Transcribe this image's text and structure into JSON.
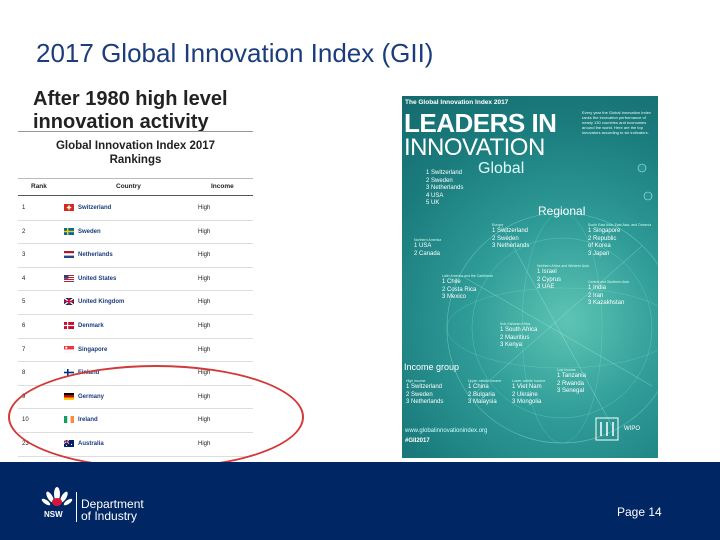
{
  "slide": {
    "title": "2017 Global Innovation Index (GII)",
    "subtitle_line1": "After 1980 high level",
    "subtitle_line2": "innovation activity",
    "page_label": "Page 14"
  },
  "rankings": {
    "heading_line1": "Global Innovation Index 2017",
    "heading_line2": "Rankings",
    "columns": [
      "Rank",
      "Country",
      "Income"
    ],
    "rows": [
      {
        "rank": "1",
        "country": "Switzerland",
        "income": "High",
        "flag": "switzerland-flag"
      },
      {
        "rank": "2",
        "country": "Sweden",
        "income": "High",
        "flag": "sweden-flag"
      },
      {
        "rank": "3",
        "country": "Netherlands",
        "income": "High",
        "flag": "netherlands-flag"
      },
      {
        "rank": "4",
        "country": "United States",
        "income": "High",
        "flag": "us-flag"
      },
      {
        "rank": "5",
        "country": "United Kingdom",
        "income": "High",
        "flag": "uk-flag"
      },
      {
        "rank": "6",
        "country": "Denmark",
        "income": "High",
        "flag": "denmark-flag"
      },
      {
        "rank": "7",
        "country": "Singapore",
        "income": "High",
        "flag": "singapore-flag"
      },
      {
        "rank": "8",
        "country": "Finland",
        "income": "High",
        "flag": "finland-flag"
      },
      {
        "rank": "9",
        "country": "Germany",
        "income": "High",
        "flag": "germany-flag"
      },
      {
        "rank": "10",
        "country": "Ireland",
        "income": "High",
        "flag": "ireland-flag"
      },
      {
        "rank": "23",
        "country": "Australia",
        "income": "High",
        "flag": "australia-flag"
      }
    ]
  },
  "cover": {
    "small_title": "The Global Innovation Index 2017",
    "leaders": "LEADERS IN",
    "innovation": "INNOVATION",
    "global": "Global",
    "blurb": "Every year the Global Innovation Index ranks the innovation performance of nearly 130 countries and economies around the world. Here are the top innovators according to six indicators.",
    "global_list": [
      "1 Switzerland",
      "2 Sweden",
      "3 Netherlands",
      "4 USA",
      "5 UK"
    ],
    "regional": "Regional",
    "europe_label": "Europe",
    "europe_list": [
      "1 Switzerland",
      "2 Sweden",
      "3 Netherlands"
    ],
    "north_america_label": "Northern America",
    "north_america_list": [
      "1 USA",
      "2 Canada"
    ],
    "asia_label": "South East Asia, East Asia, and Oceania",
    "asia_list": [
      "1 Singapore",
      "2 Republic",
      "of Korea",
      "3 Japan"
    ],
    "wasia_label": "Northern Africa and Western Asia",
    "wasia_list": [
      "1 Israel",
      "2 Cyprus",
      "3 UAE"
    ],
    "latam_label": "Latin America and the Caribbean",
    "latam_list": [
      "1 Chile",
      "2 Costa Rica",
      "3 Mexico"
    ],
    "casia_label": "Central and Southern Asia",
    "casia_list": [
      "1 India",
      "2 Iran",
      "3 Kazakhstan"
    ],
    "africa_label": "Sub-Saharan Africa",
    "africa_list": [
      "1 South Africa",
      "2 Mauritius",
      "3 Kenya"
    ],
    "income_group": "Income group",
    "income_high_label": "High income",
    "income_high": [
      "1 Switzerland",
      "2 Sweden",
      "3 Netherlands"
    ],
    "income_um_label": "Upper-middle income",
    "income_um": [
      "1 China",
      "2 Bulgaria",
      "3 Malaysia"
    ],
    "income_lm_label": "Lower-middle income",
    "income_lm": [
      "1 Viet Nam",
      "2 Ukraine",
      "3 Mongolia"
    ],
    "income_low_label": "Low income",
    "income_low": [
      "1 Tanzania",
      "2 Rwanda",
      "3 Senegal"
    ],
    "url": "www.globalinnovationindex.org",
    "hashtag": "#GII2017",
    "wipo": "WIPO"
  },
  "footer": {
    "nsw": "NSW",
    "dept_line1": "Department",
    "dept_line2": "of Industry"
  },
  "colors": {
    "title": "#1c3d7c",
    "footer": "#002664",
    "highlight_oval": "#d23a3a",
    "cover_teal": "#1b7c7d"
  }
}
